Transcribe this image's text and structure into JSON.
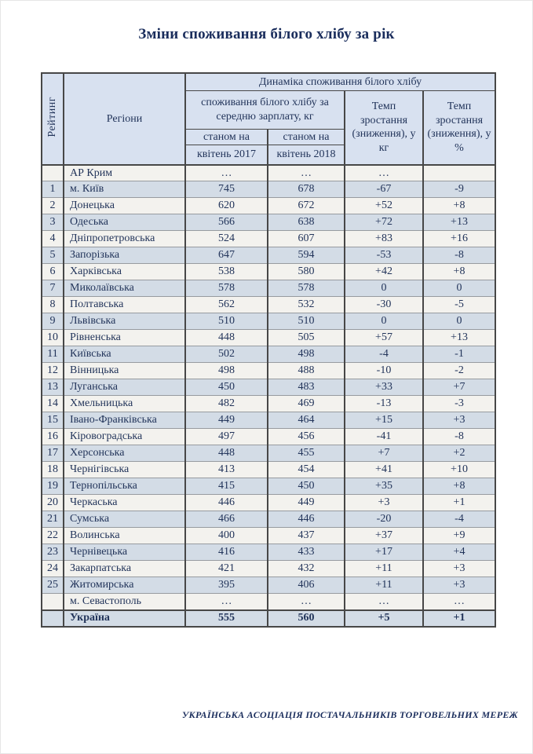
{
  "page": {
    "title": "Зміни споживання білого хлібу за рік",
    "footer": "УКРАЇНСЬКА АСОЦІАЦІЯ ПОСТАЧАЛЬНИКІВ ТОРГОВЕЛЬНИХ МЕРЕЖ"
  },
  "colors": {
    "title_text": "#1a2d5c",
    "table_text": "#22345a",
    "header_bg": "#d8e1f0",
    "stripe_bg": "#d3dce6",
    "row_bg": "#f3f2ee",
    "border_dark": "#474747",
    "border_light": "#979ba0"
  },
  "table": {
    "header": {
      "rating": "Рейтинг",
      "regions": "Регіони",
      "dynamics": "Динаміка споживання білого хлібу",
      "consumption": "споживання білого хлібу за середню зарплату, кг",
      "as_of_2017": "станом на",
      "as_of_2018": "станом на",
      "april_2017": "квітень 2017",
      "april_2018": "квітень 2018",
      "growth_kg": "Темп зростання (зниження), у кг",
      "growth_pct": "Темп зростання (зниження), у %"
    },
    "rows": [
      {
        "rank": "",
        "region": "АР Крим",
        "v2017": "…",
        "v2018": "…",
        "dkg": "…",
        "dpct": ""
      },
      {
        "rank": "1",
        "region": "м. Київ",
        "v2017": "745",
        "v2018": "678",
        "dkg": "-67",
        "dpct": "-9"
      },
      {
        "rank": "2",
        "region": "Донецька",
        "v2017": "620",
        "v2018": "672",
        "dkg": "+52",
        "dpct": "+8"
      },
      {
        "rank": "3",
        "region": "Одеська",
        "v2017": "566",
        "v2018": "638",
        "dkg": "+72",
        "dpct": "+13"
      },
      {
        "rank": "4",
        "region": "Дніпропетровська",
        "v2017": "524",
        "v2018": "607",
        "dkg": "+83",
        "dpct": "+16"
      },
      {
        "rank": "5",
        "region": "Запорізька",
        "v2017": "647",
        "v2018": "594",
        "dkg": "-53",
        "dpct": "-8"
      },
      {
        "rank": "6",
        "region": "Харківська",
        "v2017": "538",
        "v2018": "580",
        "dkg": "+42",
        "dpct": "+8"
      },
      {
        "rank": "7",
        "region": "Миколаївська",
        "v2017": "578",
        "v2018": "578",
        "dkg": "0",
        "dpct": "0"
      },
      {
        "rank": "8",
        "region": "Полтавська",
        "v2017": "562",
        "v2018": "532",
        "dkg": "-30",
        "dpct": "-5"
      },
      {
        "rank": "9",
        "region": "Львівська",
        "v2017": "510",
        "v2018": "510",
        "dkg": "0",
        "dpct": "0"
      },
      {
        "rank": "10",
        "region": "Рівненська",
        "v2017": "448",
        "v2018": "505",
        "dkg": "+57",
        "dpct": "+13"
      },
      {
        "rank": "11",
        "region": "Київська",
        "v2017": "502",
        "v2018": "498",
        "dkg": "-4",
        "dpct": "-1"
      },
      {
        "rank": "12",
        "region": "Вінницька",
        "v2017": "498",
        "v2018": "488",
        "dkg": "-10",
        "dpct": "-2"
      },
      {
        "rank": "13",
        "region": "Луганська",
        "v2017": "450",
        "v2018": "483",
        "dkg": "+33",
        "dpct": "+7"
      },
      {
        "rank": "14",
        "region": "Хмельницька",
        "v2017": "482",
        "v2018": "469",
        "dkg": "-13",
        "dpct": "-3"
      },
      {
        "rank": "15",
        "region": "Івано-Франківська",
        "v2017": "449",
        "v2018": "464",
        "dkg": "+15",
        "dpct": "+3"
      },
      {
        "rank": "16",
        "region": "Кіровоградська",
        "v2017": "497",
        "v2018": "456",
        "dkg": "-41",
        "dpct": "-8"
      },
      {
        "rank": "17",
        "region": "Херсонська",
        "v2017": "448",
        "v2018": "455",
        "dkg": "+7",
        "dpct": "+2"
      },
      {
        "rank": "18",
        "region": "Чернігівська",
        "v2017": "413",
        "v2018": "454",
        "dkg": "+41",
        "dpct": "+10"
      },
      {
        "rank": "19",
        "region": "Тернопільська",
        "v2017": "415",
        "v2018": "450",
        "dkg": "+35",
        "dpct": "+8"
      },
      {
        "rank": "20",
        "region": "Черкаська",
        "v2017": "446",
        "v2018": "449",
        "dkg": "+3",
        "dpct": "+1"
      },
      {
        "rank": "21",
        "region": "Сумська",
        "v2017": "466",
        "v2018": "446",
        "dkg": "-20",
        "dpct": "-4"
      },
      {
        "rank": "22",
        "region": "Волинська",
        "v2017": "400",
        "v2018": "437",
        "dkg": "+37",
        "dpct": "+9"
      },
      {
        "rank": "23",
        "region": "Чернівецька",
        "v2017": "416",
        "v2018": "433",
        "dkg": "+17",
        "dpct": "+4"
      },
      {
        "rank": "24",
        "region": "Закарпатська",
        "v2017": "421",
        "v2018": "432",
        "dkg": "+11",
        "dpct": "+3"
      },
      {
        "rank": "25",
        "region": "Житомирська",
        "v2017": "395",
        "v2018": "406",
        "dkg": "+11",
        "dpct": "+3"
      },
      {
        "rank": "",
        "region": "м. Севастополь",
        "v2017": "…",
        "v2018": "…",
        "dkg": "…",
        "dpct": "…"
      },
      {
        "rank": "",
        "region": "Україна",
        "v2017": "555",
        "v2018": "560",
        "dkg": "+5",
        "dpct": "+1",
        "total": true
      }
    ]
  }
}
